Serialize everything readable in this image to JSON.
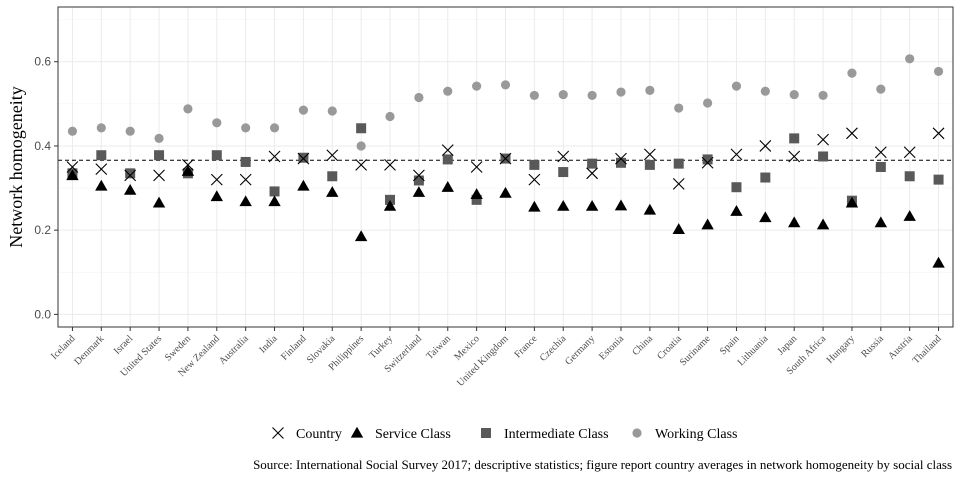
{
  "chart_data": {
    "type": "scatter",
    "ylabel": "Network homogeneity",
    "xlabel": "",
    "caption": "Source: International Social Survey 2017; descriptive statistics; figure report country averages in network homogeneity by social class",
    "ylim": [
      -0.03,
      0.73
    ],
    "yticks": [
      0.0,
      0.2,
      0.4,
      0.6
    ],
    "ytick_labels": [
      "0.0",
      "0.2",
      "0.4",
      "0.6"
    ],
    "grid": true,
    "legend_position": "bottom",
    "reference_line": {
      "y": 0.366,
      "style": "dashed"
    },
    "categories": [
      "Iceland",
      "Denmark",
      "Israel",
      "United States",
      "Sweden",
      "New Zealand",
      "Australia",
      "India",
      "Finland",
      "Slovakia",
      "Philippines",
      "Turkey",
      "Switzerland",
      "Taiwan",
      "Mexico",
      "United Kingdom",
      "France",
      "Czechia",
      "Germany",
      "Estonia",
      "China",
      "Croatia",
      "Suriname",
      "Spain",
      "Lithuania",
      "Japan",
      "South Africa",
      "Hungary",
      "Russia",
      "Austria",
      "Thailand"
    ],
    "series": [
      {
        "name": "Country",
        "marker": "x",
        "color": "#000000",
        "values": [
          0.35,
          0.345,
          0.33,
          0.33,
          0.355,
          0.32,
          0.32,
          0.375,
          0.37,
          0.378,
          0.355,
          0.355,
          0.33,
          0.39,
          0.35,
          0.37,
          0.32,
          0.375,
          0.335,
          0.37,
          0.38,
          0.31,
          0.36,
          0.38,
          0.4,
          0.375,
          0.415,
          0.43,
          0.385,
          0.385,
          0.43
        ]
      },
      {
        "name": "Service Class",
        "marker": "triangle",
        "color": "#000000",
        "values": [
          0.33,
          0.305,
          0.295,
          0.265,
          0.34,
          0.28,
          0.268,
          0.268,
          0.305,
          0.29,
          0.185,
          0.257,
          0.29,
          0.302,
          0.285,
          0.288,
          0.255,
          0.257,
          0.257,
          0.258,
          0.248,
          0.202,
          0.213,
          0.245,
          0.23,
          0.218,
          0.213,
          0.265,
          0.218,
          0.233,
          0.122
        ]
      },
      {
        "name": "Intermediate Class",
        "marker": "square",
        "color": "#595959",
        "values": [
          0.335,
          0.378,
          0.335,
          0.378,
          0.335,
          0.378,
          0.362,
          0.292,
          0.372,
          0.328,
          0.442,
          0.272,
          0.318,
          0.368,
          0.272,
          0.37,
          0.355,
          0.338,
          0.358,
          0.36,
          0.355,
          0.358,
          0.368,
          0.302,
          0.325,
          0.418,
          0.375,
          0.27,
          0.35,
          0.328,
          0.32
        ]
      },
      {
        "name": "Working Class",
        "marker": "circle",
        "color": "#999999",
        "values": [
          0.435,
          0.443,
          0.435,
          0.418,
          0.488,
          0.455,
          0.443,
          0.443,
          0.485,
          0.483,
          0.4,
          0.47,
          0.515,
          0.53,
          0.542,
          0.545,
          0.52,
          0.522,
          0.52,
          0.528,
          0.532,
          0.49,
          0.502,
          0.542,
          0.53,
          0.522,
          0.52,
          0.573,
          0.535,
          0.607,
          0.577
        ]
      }
    ]
  }
}
